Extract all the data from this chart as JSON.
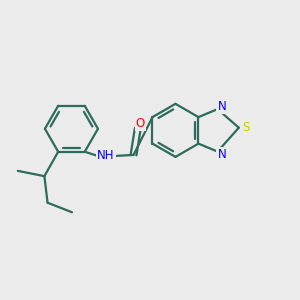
{
  "background_color": "#ebebeb",
  "bond_color": "#2d6b5a",
  "bond_width": 1.6,
  "atom_colors": {
    "N": "#0000ff",
    "O": "#ff0000",
    "S": "#cccc00",
    "C": "#2d6b5a"
  },
  "font_size": 8.5,
  "xlim": [
    0.2,
    5.8
  ],
  "ylim": [
    0.5,
    5.2
  ]
}
